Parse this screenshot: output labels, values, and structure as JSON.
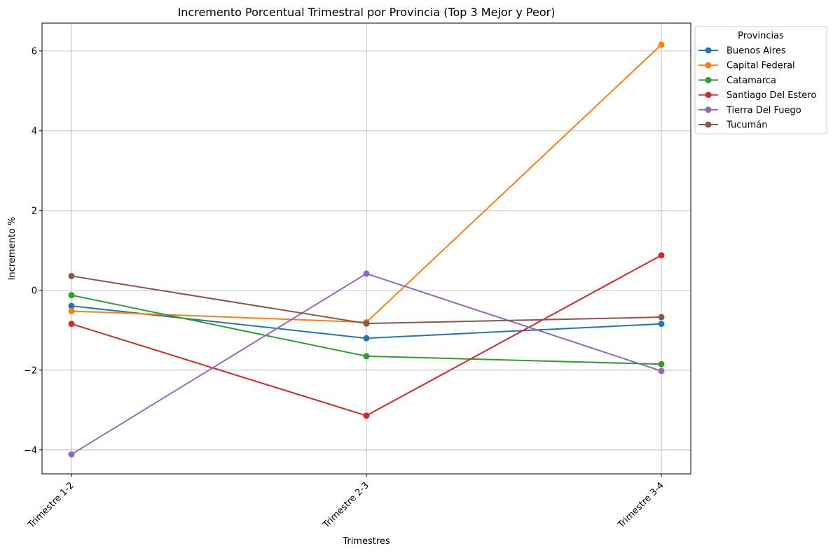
{
  "chart_data": {
    "type": "line",
    "title": "Incremento Porcentual Trimestral por Provincia (Top 3 Mejor y Peor)",
    "xlabel": "Trimestres",
    "ylabel": "Incremento %",
    "categories": [
      "Trimestre 1-2",
      "Trimestre 2-3",
      "Trimestre 3-4"
    ],
    "ylim": [
      -4.6,
      6.7
    ],
    "yticks": [
      -4,
      -2,
      0,
      2,
      4,
      6
    ],
    "ytick_labels": [
      "−4",
      "−2",
      "0",
      "2",
      "4",
      "6"
    ],
    "grid": true,
    "legend": {
      "title": "Provincias",
      "placement": "outside-top-right"
    },
    "series": [
      {
        "name": "Buenos Aires",
        "color": "#1f77b4",
        "values": [
          -0.39,
          -1.2,
          -0.84
        ]
      },
      {
        "name": "Capital Federal",
        "color": "#ff7f0e",
        "values": [
          -0.52,
          -0.8,
          6.16
        ]
      },
      {
        "name": "Catamarca",
        "color": "#2ca02c",
        "values": [
          -0.12,
          -1.65,
          -1.85
        ]
      },
      {
        "name": "Santiago Del Estero",
        "color": "#d62728",
        "values": [
          -0.84,
          -3.14,
          0.88
        ]
      },
      {
        "name": "Tierra Del Fuego",
        "color": "#9467bd",
        "values": [
          -4.11,
          0.42,
          -2.02
        ]
      },
      {
        "name": "Tucumán",
        "color": "#8c564b",
        "values": [
          0.36,
          -0.83,
          -0.67
        ]
      }
    ]
  }
}
